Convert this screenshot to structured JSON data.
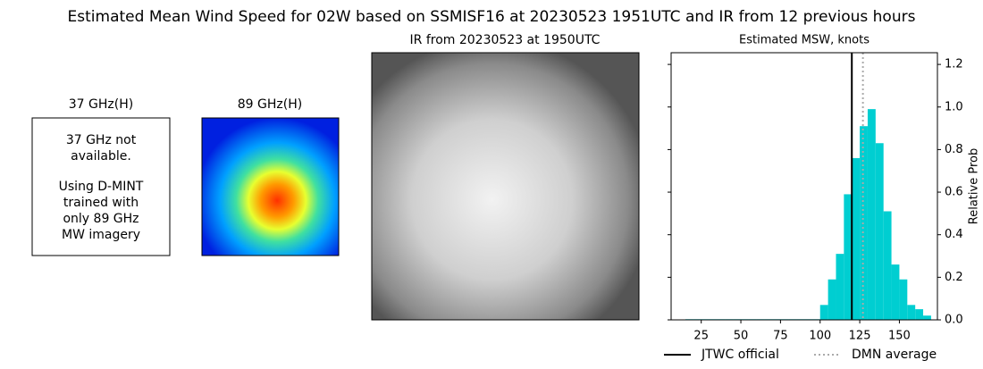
{
  "title": "Estimated Mean Wind Speed for 02W based on SSMISF16 at 20230523 1951UTC and IR from 12 previous hours",
  "panel_37": {
    "label": "37 GHz(H)",
    "message": [
      "37 GHz not",
      "available."
    ],
    "note": [
      "Using D-MINT",
      "trained with",
      "only 89 GHz",
      "MW imagery"
    ]
  },
  "panel_89": {
    "label": "89 GHz(H)"
  },
  "panel_ir": {
    "label": "IR from 20230523 at 1950UTC"
  },
  "chart_data": {
    "type": "histogram",
    "title": "Estimated MSW, knots",
    "y_label": "Relative Prob",
    "y_axis_side": "right",
    "color": "#00ced1",
    "bins": [
      15,
      20,
      25,
      30,
      35,
      40,
      45,
      50,
      55,
      60,
      65,
      70,
      75,
      80,
      85,
      90,
      95,
      100,
      105,
      110,
      115,
      120,
      125,
      130,
      135,
      140,
      145,
      150,
      155,
      160,
      165,
      170
    ],
    "values": [
      0.003,
      0.003,
      0.003,
      0.003,
      0.003,
      0.003,
      0.003,
      0.003,
      0.003,
      0.003,
      0.003,
      0.003,
      0.003,
      0.003,
      0.003,
      0.003,
      0.003,
      0.07,
      0.19,
      0.31,
      0.59,
      0.76,
      0.91,
      0.99,
      0.83,
      0.51,
      0.26,
      0.19,
      0.07,
      0.05,
      0.02
    ],
    "xlim": [
      6,
      174
    ],
    "ylim": [
      0,
      1.255
    ],
    "xticks": [
      25,
      50,
      75,
      100,
      125,
      150
    ],
    "yticks": [
      {
        "value": 0,
        "label": "0.0"
      },
      0.2,
      0.4,
      0.6,
      0.8,
      {
        "value": 1,
        "label": "1.0"
      },
      1.2
    ],
    "lines": [
      {
        "name": "JTWC official",
        "x": 120,
        "color": "#000000",
        "style": "solid"
      },
      {
        "name": "DMN average",
        "x": 127,
        "color": "#aaaaaa",
        "style": "dotted"
      }
    ]
  }
}
